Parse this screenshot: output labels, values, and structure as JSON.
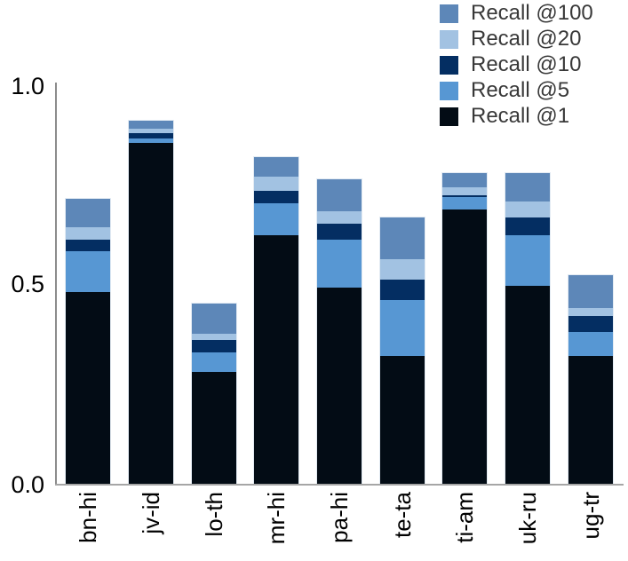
{
  "chart_data": {
    "type": "bar",
    "stacked": true,
    "title": "",
    "xlabel": "",
    "ylabel": "",
    "categories": [
      "bn-hi",
      "jv-id",
      "lo-th",
      "mr-hi",
      "pa-hi",
      "te-ta",
      "ti-am",
      "uk-ru",
      "ug-tr"
    ],
    "values_are_cumulative": true,
    "series": [
      {
        "name": "Recall @1",
        "color": "#030c15",
        "values": [
          0.48,
          0.85,
          0.28,
          0.62,
          0.49,
          0.32,
          0.685,
          0.495,
          0.32
        ]
      },
      {
        "name": "Recall @5",
        "color": "#5797d3",
        "values": [
          0.58,
          0.86,
          0.33,
          0.7,
          0.61,
          0.46,
          0.715,
          0.62,
          0.38
        ]
      },
      {
        "name": "Recall @10",
        "color": "#042e62",
        "values": [
          0.61,
          0.875,
          0.36,
          0.73,
          0.65,
          0.51,
          0.72,
          0.665,
          0.42
        ]
      },
      {
        "name": "Recall @20",
        "color": "#a2c2e2",
        "values": [
          0.64,
          0.885,
          0.375,
          0.765,
          0.68,
          0.56,
          0.74,
          0.705,
          0.44
        ]
      },
      {
        "name": "Recall @100",
        "color": "#5d87b8",
        "values": [
          0.71,
          0.905,
          0.45,
          0.815,
          0.76,
          0.665,
          0.775,
          0.775,
          0.52
        ]
      }
    ],
    "legend_order_top_to_bottom": [
      "Recall @100",
      "Recall @20",
      "Recall @10",
      "Recall @5",
      "Recall @1"
    ],
    "legend_position": "top-right",
    "ylim": [
      0.0,
      1.0
    ],
    "yticks": [
      "0.0",
      "0.5",
      "1.0"
    ],
    "grid": false,
    "axis_color": "#8c8c8c"
  }
}
